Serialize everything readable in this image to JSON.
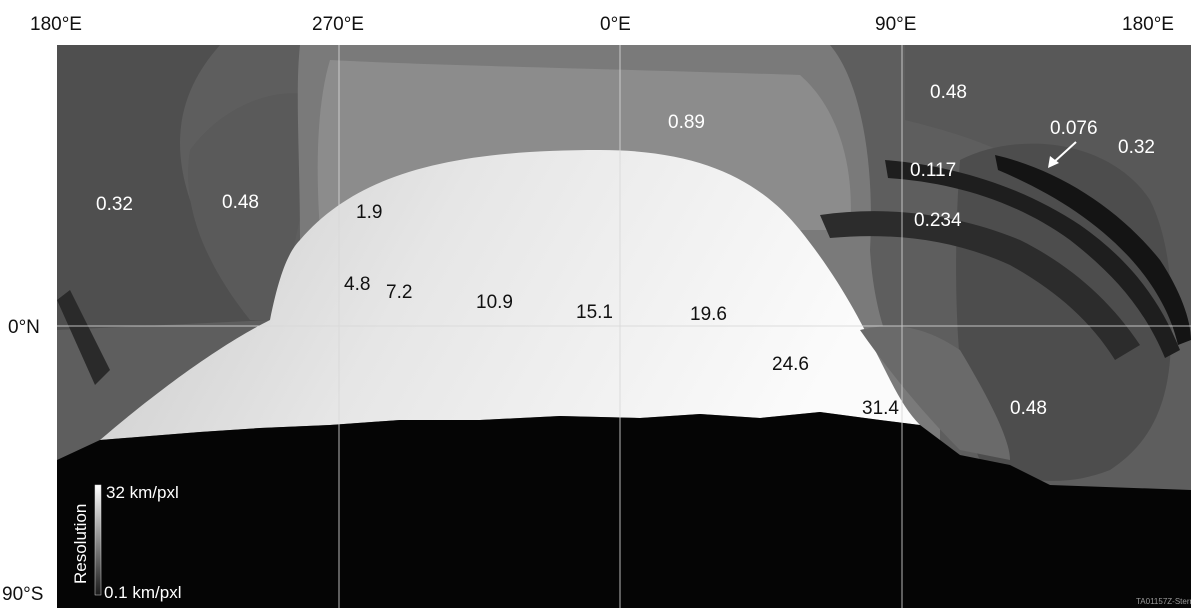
{
  "axes": {
    "longitude_labels": [
      "180°E",
      "270°E",
      "0°E",
      "90°E",
      "180°E"
    ],
    "latitude_labels": [
      "0°N",
      "90°S"
    ]
  },
  "resolution_labels": [
    {
      "text": "0.32",
      "region": "west-hemisphere-left",
      "tone": "light"
    },
    {
      "text": "0.48",
      "region": "west-hemisphere-inner",
      "tone": "light"
    },
    {
      "text": "0.89",
      "region": "mid-band-top",
      "tone": "light"
    },
    {
      "text": "0.48",
      "region": "upper-right",
      "tone": "light"
    },
    {
      "text": "0.076",
      "region": "far-right-arc",
      "tone": "light"
    },
    {
      "text": "0.32",
      "region": "far-right",
      "tone": "light"
    },
    {
      "text": "0.117",
      "region": "dark-arc-upper",
      "tone": "light"
    },
    {
      "text": "0.234",
      "region": "dark-arc-lower",
      "tone": "light"
    },
    {
      "text": "1.9",
      "region": "bright-region",
      "tone": "dark"
    },
    {
      "text": "4.8",
      "region": "bright-region",
      "tone": "dark"
    },
    {
      "text": "7.2",
      "region": "bright-region",
      "tone": "dark"
    },
    {
      "text": "10.9",
      "region": "bright-region",
      "tone": "dark"
    },
    {
      "text": "15.1",
      "region": "bright-region",
      "tone": "dark"
    },
    {
      "text": "19.6",
      "region": "bright-region",
      "tone": "dark"
    },
    {
      "text": "24.6",
      "region": "bright-region",
      "tone": "dark"
    },
    {
      "text": "31.4",
      "region": "bright-region",
      "tone": "dark"
    },
    {
      "text": "0.48",
      "region": "lower-right",
      "tone": "light"
    }
  ],
  "legend": {
    "title": "Resolution",
    "max_label": "32 km/pxl",
    "min_label": "0.1 km/pxl"
  },
  "credit": "TA01157Z-Stern"
}
